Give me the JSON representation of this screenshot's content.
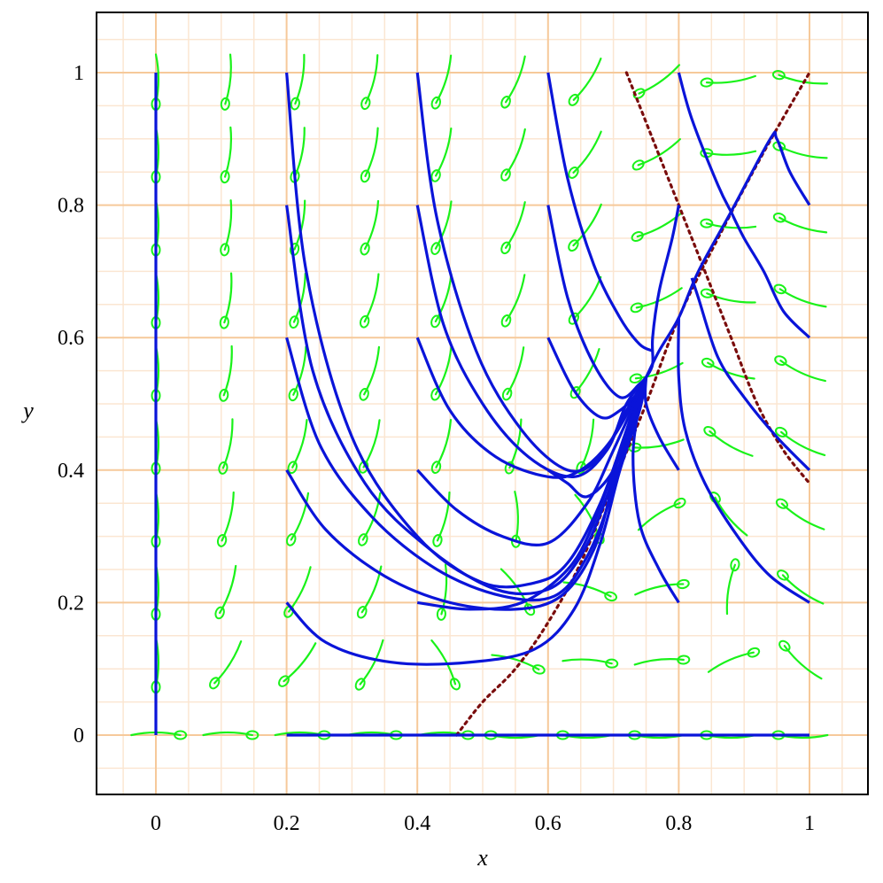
{
  "chart_data": {
    "type": "line",
    "title": "",
    "xlabel": "x",
    "ylabel": "y",
    "xlim": [
      -0.09,
      1.09
    ],
    "ylim": [
      -0.09,
      1.09
    ],
    "grid": true,
    "xticks": [
      {
        "value": 0,
        "label": "0"
      },
      {
        "value": 0.2,
        "label": "0.2"
      },
      {
        "value": 0.4,
        "label": "0.4"
      },
      {
        "value": 0.6,
        "label": "0.6"
      },
      {
        "value": 0.8,
        "label": "0.8"
      },
      {
        "value": 1,
        "label": "1"
      }
    ],
    "yticks": [
      {
        "value": 0,
        "label": "0"
      },
      {
        "value": 0.2,
        "label": "0.2"
      },
      {
        "value": 0.4,
        "label": "0.4"
      },
      {
        "value": 0.6,
        "label": "0.6"
      },
      {
        "value": 0.8,
        "label": "0.8"
      },
      {
        "value": 1,
        "label": "1"
      }
    ],
    "colors": {
      "frame": "#000000",
      "grid_major": "#f6c99a",
      "grid_minor": "#fbe6d2",
      "trajectory": "#0a14d9",
      "field": "#19f219",
      "nullcline": "#7a0c0c"
    },
    "nullclines": [
      {
        "style": "dotted",
        "points": [
          [
            0.46,
            0.0
          ],
          [
            0.5,
            0.05
          ],
          [
            0.55,
            0.1
          ],
          [
            0.6,
            0.17
          ],
          [
            0.65,
            0.26
          ],
          [
            0.7,
            0.38
          ],
          [
            0.75,
            0.5
          ],
          [
            0.8,
            0.63
          ],
          [
            0.86,
            0.75
          ],
          [
            0.93,
            0.88
          ],
          [
            1.0,
            1.0
          ]
        ]
      },
      {
        "style": "dotted",
        "points": [
          [
            0.72,
            1.0
          ],
          [
            0.76,
            0.9
          ],
          [
            0.8,
            0.8
          ],
          [
            0.84,
            0.7
          ],
          [
            0.88,
            0.6
          ],
          [
            0.92,
            0.5
          ],
          [
            0.96,
            0.43
          ],
          [
            1.0,
            0.38
          ]
        ]
      }
    ],
    "trajectories": [
      [
        [
          0.0,
          1.0
        ],
        [
          0.0,
          0.0
        ]
      ],
      [
        [
          0.2,
          0.0
        ],
        [
          1.0,
          0.0
        ]
      ],
      [
        [
          0.2,
          1.0
        ],
        [
          0.23,
          0.7
        ],
        [
          0.3,
          0.45
        ],
        [
          0.4,
          0.3
        ],
        [
          0.5,
          0.23
        ],
        [
          0.58,
          0.23
        ],
        [
          0.63,
          0.26
        ],
        [
          0.68,
          0.35
        ],
        [
          0.72,
          0.46
        ],
        [
          0.75,
          0.54
        ]
      ],
      [
        [
          0.2,
          0.8
        ],
        [
          0.24,
          0.55
        ],
        [
          0.32,
          0.38
        ],
        [
          0.42,
          0.28
        ],
        [
          0.52,
          0.22
        ],
        [
          0.6,
          0.22
        ],
        [
          0.65,
          0.27
        ],
        [
          0.69,
          0.36
        ],
        [
          0.72,
          0.46
        ],
        [
          0.75,
          0.54
        ]
      ],
      [
        [
          0.2,
          0.6
        ],
        [
          0.25,
          0.44
        ],
        [
          0.33,
          0.33
        ],
        [
          0.43,
          0.25
        ],
        [
          0.53,
          0.21
        ],
        [
          0.61,
          0.21
        ],
        [
          0.66,
          0.27
        ],
        [
          0.7,
          0.37
        ],
        [
          0.73,
          0.47
        ],
        [
          0.75,
          0.54
        ]
      ],
      [
        [
          0.2,
          0.4
        ],
        [
          0.26,
          0.31
        ],
        [
          0.35,
          0.24
        ],
        [
          0.45,
          0.2
        ],
        [
          0.55,
          0.19
        ],
        [
          0.62,
          0.21
        ],
        [
          0.67,
          0.28
        ],
        [
          0.7,
          0.38
        ],
        [
          0.73,
          0.47
        ],
        [
          0.75,
          0.54
        ]
      ],
      [
        [
          0.2,
          0.2
        ],
        [
          0.26,
          0.14
        ],
        [
          0.36,
          0.11
        ],
        [
          0.48,
          0.11
        ],
        [
          0.58,
          0.13
        ],
        [
          0.64,
          0.19
        ],
        [
          0.68,
          0.29
        ],
        [
          0.71,
          0.4
        ],
        [
          0.74,
          0.49
        ],
        [
          0.75,
          0.54
        ]
      ],
      [
        [
          0.4,
          1.0
        ],
        [
          0.43,
          0.78
        ],
        [
          0.49,
          0.58
        ],
        [
          0.56,
          0.46
        ],
        [
          0.63,
          0.4
        ],
        [
          0.68,
          0.42
        ],
        [
          0.72,
          0.49
        ],
        [
          0.75,
          0.54
        ]
      ],
      [
        [
          0.4,
          0.8
        ],
        [
          0.44,
          0.62
        ],
        [
          0.5,
          0.5
        ],
        [
          0.57,
          0.42
        ],
        [
          0.64,
          0.39
        ],
        [
          0.69,
          0.43
        ],
        [
          0.72,
          0.5
        ],
        [
          0.75,
          0.54
        ]
      ],
      [
        [
          0.4,
          0.6
        ],
        [
          0.45,
          0.49
        ],
        [
          0.52,
          0.42
        ],
        [
          0.6,
          0.39
        ],
        [
          0.65,
          0.4
        ],
        [
          0.7,
          0.45
        ],
        [
          0.75,
          0.54
        ]
      ],
      [
        [
          0.4,
          0.4
        ],
        [
          0.46,
          0.34
        ],
        [
          0.53,
          0.3
        ],
        [
          0.6,
          0.29
        ],
        [
          0.66,
          0.35
        ],
        [
          0.7,
          0.43
        ],
        [
          0.75,
          0.54
        ]
      ],
      [
        [
          0.4,
          0.2
        ],
        [
          0.48,
          0.19
        ],
        [
          0.56,
          0.2
        ],
        [
          0.63,
          0.25
        ],
        [
          0.67,
          0.32
        ],
        [
          0.71,
          0.43
        ],
        [
          0.75,
          0.54
        ]
      ],
      [
        [
          0.6,
          1.0
        ],
        [
          0.63,
          0.84
        ],
        [
          0.67,
          0.71
        ],
        [
          0.71,
          0.63
        ],
        [
          0.74,
          0.59
        ],
        [
          0.76,
          0.58
        ]
      ],
      [
        [
          0.6,
          0.8
        ],
        [
          0.63,
          0.66
        ],
        [
          0.67,
          0.56
        ],
        [
          0.71,
          0.51
        ],
        [
          0.74,
          0.53
        ],
        [
          0.75,
          0.54
        ]
      ],
      [
        [
          0.6,
          0.6
        ],
        [
          0.64,
          0.52
        ],
        [
          0.68,
          0.48
        ],
        [
          0.71,
          0.49
        ],
        [
          0.74,
          0.52
        ],
        [
          0.75,
          0.54
        ]
      ],
      [
        [
          0.6,
          0.4
        ],
        [
          0.63,
          0.38
        ],
        [
          0.66,
          0.36
        ],
        [
          0.7,
          0.4
        ],
        [
          0.73,
          0.48
        ],
        [
          0.75,
          0.54
        ]
      ],
      [
        [
          0.8,
          0.2
        ],
        [
          0.77,
          0.25
        ],
        [
          0.74,
          0.32
        ],
        [
          0.73,
          0.42
        ],
        [
          0.74,
          0.5
        ],
        [
          0.75,
          0.54
        ]
      ],
      [
        [
          0.8,
          0.4
        ],
        [
          0.77,
          0.45
        ],
        [
          0.75,
          0.5
        ],
        [
          0.75,
          0.54
        ]
      ],
      [
        [
          0.8,
          0.8
        ],
        [
          0.79,
          0.75
        ],
        [
          0.77,
          0.67
        ],
        [
          0.76,
          0.6
        ],
        [
          0.76,
          0.56
        ],
        [
          0.75,
          0.54
        ]
      ],
      [
        [
          0.8,
          1.0
        ],
        [
          0.82,
          0.93
        ],
        [
          0.86,
          0.83
        ],
        [
          0.88,
          0.79
        ]
      ],
      [
        [
          1.0,
          0.2
        ],
        [
          0.94,
          0.24
        ],
        [
          0.89,
          0.3
        ],
        [
          0.84,
          0.38
        ],
        [
          0.81,
          0.46
        ],
        [
          0.8,
          0.54
        ],
        [
          0.8,
          0.63
        ]
      ],
      [
        [
          1.0,
          0.4
        ],
        [
          0.95,
          0.45
        ],
        [
          0.9,
          0.51
        ],
        [
          0.86,
          0.57
        ],
        [
          0.83,
          0.66
        ],
        [
          0.82,
          0.69
        ]
      ],
      [
        [
          1.0,
          0.6
        ],
        [
          0.96,
          0.64
        ],
        [
          0.93,
          0.7
        ],
        [
          0.9,
          0.75
        ],
        [
          0.88,
          0.79
        ]
      ],
      [
        [
          1.0,
          0.8
        ],
        [
          0.97,
          0.85
        ],
        [
          0.95,
          0.9
        ],
        [
          0.94,
          0.9
        ],
        [
          0.88,
          0.79
        ],
        [
          0.83,
          0.7
        ],
        [
          0.8,
          0.63
        ],
        [
          0.77,
          0.58
        ],
        [
          0.75,
          0.54
        ]
      ]
    ],
    "field_x": [
      0.0,
      0.11,
      0.22,
      0.33,
      0.44,
      0.55,
      0.66,
      0.77,
      0.88,
      0.99
    ],
    "field_y": [
      0.0,
      0.11,
      0.22,
      0.33,
      0.44,
      0.55,
      0.66,
      0.77,
      0.88,
      0.99
    ],
    "field_samples": [
      {
        "x": 0.2,
        "y": 0.8,
        "dx": -0.002,
        "dy": -0.055
      },
      {
        "x": 0.2,
        "y": 0.2,
        "dx": -0.03,
        "dy": -0.04
      },
      {
        "x": 0.8,
        "y": 0.4,
        "dx": 0.05,
        "dy": -0.035
      },
      {
        "x": 0.8,
        "y": 0.2,
        "dx": 0.06,
        "dy": -0.02
      }
    ]
  }
}
